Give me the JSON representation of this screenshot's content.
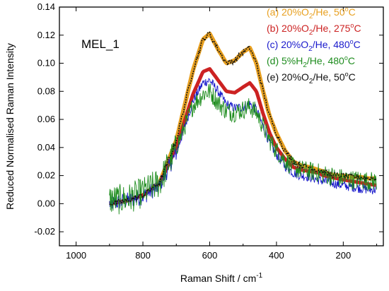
{
  "chart_data": {
    "type": "line",
    "annotation": "MEL_1",
    "xlabel": "Raman Shift / cm",
    "xlabel_sup": "-1",
    "ylabel": "Reduced Normalised Raman Intensity",
    "xlim": [
      1050,
      80
    ],
    "ylim": [
      -0.03,
      0.14
    ],
    "x_reversed": true,
    "x_ticks": [
      1000,
      800,
      600,
      400,
      200
    ],
    "y_ticks": [
      -0.02,
      0.0,
      0.02,
      0.04,
      0.06,
      0.08,
      0.1,
      0.12,
      0.14
    ],
    "x_tick_labels": [
      "1000",
      "800",
      "600",
      "400",
      "200"
    ],
    "y_tick_labels": [
      "-0.02",
      "0.00",
      "0.02",
      "0.04",
      "0.06",
      "0.08",
      "0.10",
      "0.12",
      "0.14"
    ],
    "legend_position": "top-right",
    "x": [
      900,
      850,
      800,
      750,
      700,
      650,
      620,
      600,
      575,
      550,
      525,
      500,
      480,
      460,
      440,
      420,
      400,
      375,
      350,
      325,
      300,
      275,
      260,
      240,
      220,
      200,
      175,
      150,
      125,
      100
    ],
    "series": [
      {
        "name": "(a) 20%O",
        "legend_parts": [
          "(a) 20%O",
          "2",
          "/He, 50",
          "o",
          "C"
        ],
        "color": "#e8a020",
        "style": "thick",
        "values": [
          0.0,
          0.002,
          0.006,
          0.015,
          0.045,
          0.095,
          0.117,
          0.121,
          0.11,
          0.1,
          0.102,
          0.108,
          0.111,
          0.1,
          0.08,
          0.062,
          0.05,
          0.038,
          0.03,
          0.027,
          0.026,
          0.024,
          0.023,
          0.021,
          0.02,
          0.02,
          0.019,
          0.019,
          0.018,
          0.018
        ]
      },
      {
        "name": "(b) 20%O",
        "legend_parts": [
          "(b) 20%O",
          "2",
          "/He, 275",
          "o",
          "C"
        ],
        "color": "#cc2222",
        "style": "thick",
        "values": [
          0.0,
          0.002,
          0.006,
          0.014,
          0.04,
          0.078,
          0.094,
          0.096,
          0.088,
          0.08,
          0.079,
          0.083,
          0.086,
          0.08,
          0.064,
          0.05,
          0.04,
          0.032,
          0.026,
          0.024,
          0.023,
          0.022,
          0.02,
          0.019,
          0.018,
          0.017,
          0.016,
          0.015,
          0.014,
          0.013
        ]
      },
      {
        "name": "(c) 20%O",
        "legend_parts": [
          "(c) 20%O",
          "2",
          "/He, 480",
          "o",
          "C"
        ],
        "color": "#1a1acc",
        "style": "noisy",
        "values": [
          0.0,
          0.002,
          0.005,
          0.013,
          0.036,
          0.073,
          0.086,
          0.088,
          0.08,
          0.071,
          0.068,
          0.069,
          0.071,
          0.067,
          0.055,
          0.043,
          0.035,
          0.027,
          0.022,
          0.02,
          0.019,
          0.017,
          0.016,
          0.015,
          0.014,
          0.013,
          0.012,
          0.011,
          0.01,
          0.01
        ]
      },
      {
        "name": "(d) 5%H",
        "legend_parts": [
          "(d) 5%H",
          "2",
          "/He, 480",
          "o",
          "C"
        ],
        "color": "#1e8c1e",
        "style": "noisy",
        "values": [
          0.003,
          0.003,
          0.008,
          0.015,
          0.04,
          0.07,
          0.078,
          0.08,
          0.072,
          0.066,
          0.065,
          0.067,
          0.069,
          0.065,
          0.055,
          0.045,
          0.038,
          0.031,
          0.026,
          0.024,
          0.023,
          0.022,
          0.021,
          0.02,
          0.019,
          0.018,
          0.017,
          0.017,
          0.016,
          0.016
        ]
      },
      {
        "name": "(e) 20%O",
        "legend_parts": [
          "(e) 20%O",
          "2",
          "/He, 50",
          "o",
          "C"
        ],
        "color": "#111111",
        "style": "dashed",
        "values": [
          0.0,
          0.002,
          0.006,
          0.015,
          0.045,
          0.095,
          0.117,
          0.121,
          0.11,
          0.1,
          0.102,
          0.108,
          0.111,
          0.1,
          0.08,
          0.062,
          0.05,
          0.038,
          0.03,
          0.027,
          0.026,
          0.024,
          0.023,
          0.021,
          0.02,
          0.02,
          0.019,
          0.019,
          0.018,
          0.018
        ]
      }
    ]
  }
}
